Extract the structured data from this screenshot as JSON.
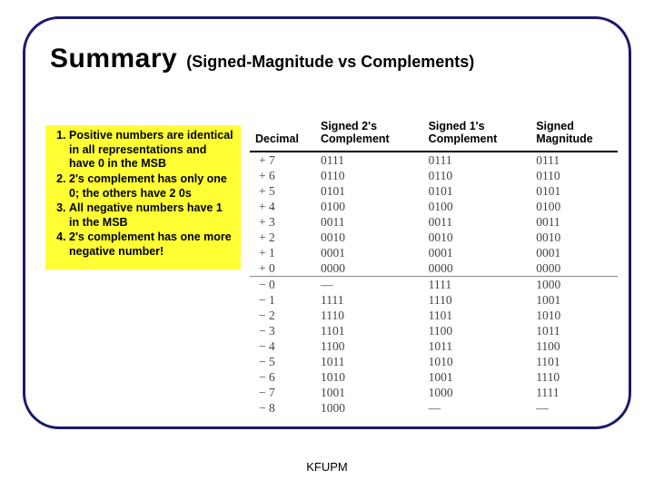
{
  "colors": {
    "frame_border": "#1a1a6e",
    "notes_bg": "#ffff33",
    "text": "#000000",
    "table_text": "#444444",
    "rule": "#888888"
  },
  "title": {
    "main": "Summary",
    "sub": "(Signed-Magnitude vs Complements)"
  },
  "notes": [
    "Positive numbers are identical in all representations and have 0 in the MSB",
    "2's complement has only one 0; the others have 2 0s",
    "All negative numbers have 1 in the MSB",
    "2's complement has one more negative number!"
  ],
  "table": {
    "headers": [
      "Decimal",
      "Signed 2's Complement",
      "Signed 1's Complement",
      "Signed Magnitude"
    ],
    "rows_pos": [
      [
        "+ 7",
        "0111",
        "0111",
        "0111"
      ],
      [
        "+ 6",
        "0110",
        "0110",
        "0110"
      ],
      [
        "+ 5",
        "0101",
        "0101",
        "0101"
      ],
      [
        "+ 4",
        "0100",
        "0100",
        "0100"
      ],
      [
        "+ 3",
        "0011",
        "0011",
        "0011"
      ],
      [
        "+ 2",
        "0010",
        "0010",
        "0010"
      ],
      [
        "+ 1",
        "0001",
        "0001",
        "0001"
      ],
      [
        "+ 0",
        "0000",
        "0000",
        "0000"
      ]
    ],
    "rows_neg": [
      [
        "− 0",
        "—",
        "1111",
        "1000"
      ],
      [
        "− 1",
        "1111",
        "1110",
        "1001"
      ],
      [
        "− 2",
        "1110",
        "1101",
        "1010"
      ],
      [
        "− 3",
        "1101",
        "1100",
        "1011"
      ],
      [
        "− 4",
        "1100",
        "1011",
        "1100"
      ],
      [
        "− 5",
        "1011",
        "1010",
        "1101"
      ],
      [
        "− 6",
        "1010",
        "1001",
        "1110"
      ],
      [
        "− 7",
        "1001",
        "1000",
        "1111"
      ],
      [
        "− 8",
        "1000",
        "—",
        "—"
      ]
    ]
  },
  "footer": "KFUPM"
}
